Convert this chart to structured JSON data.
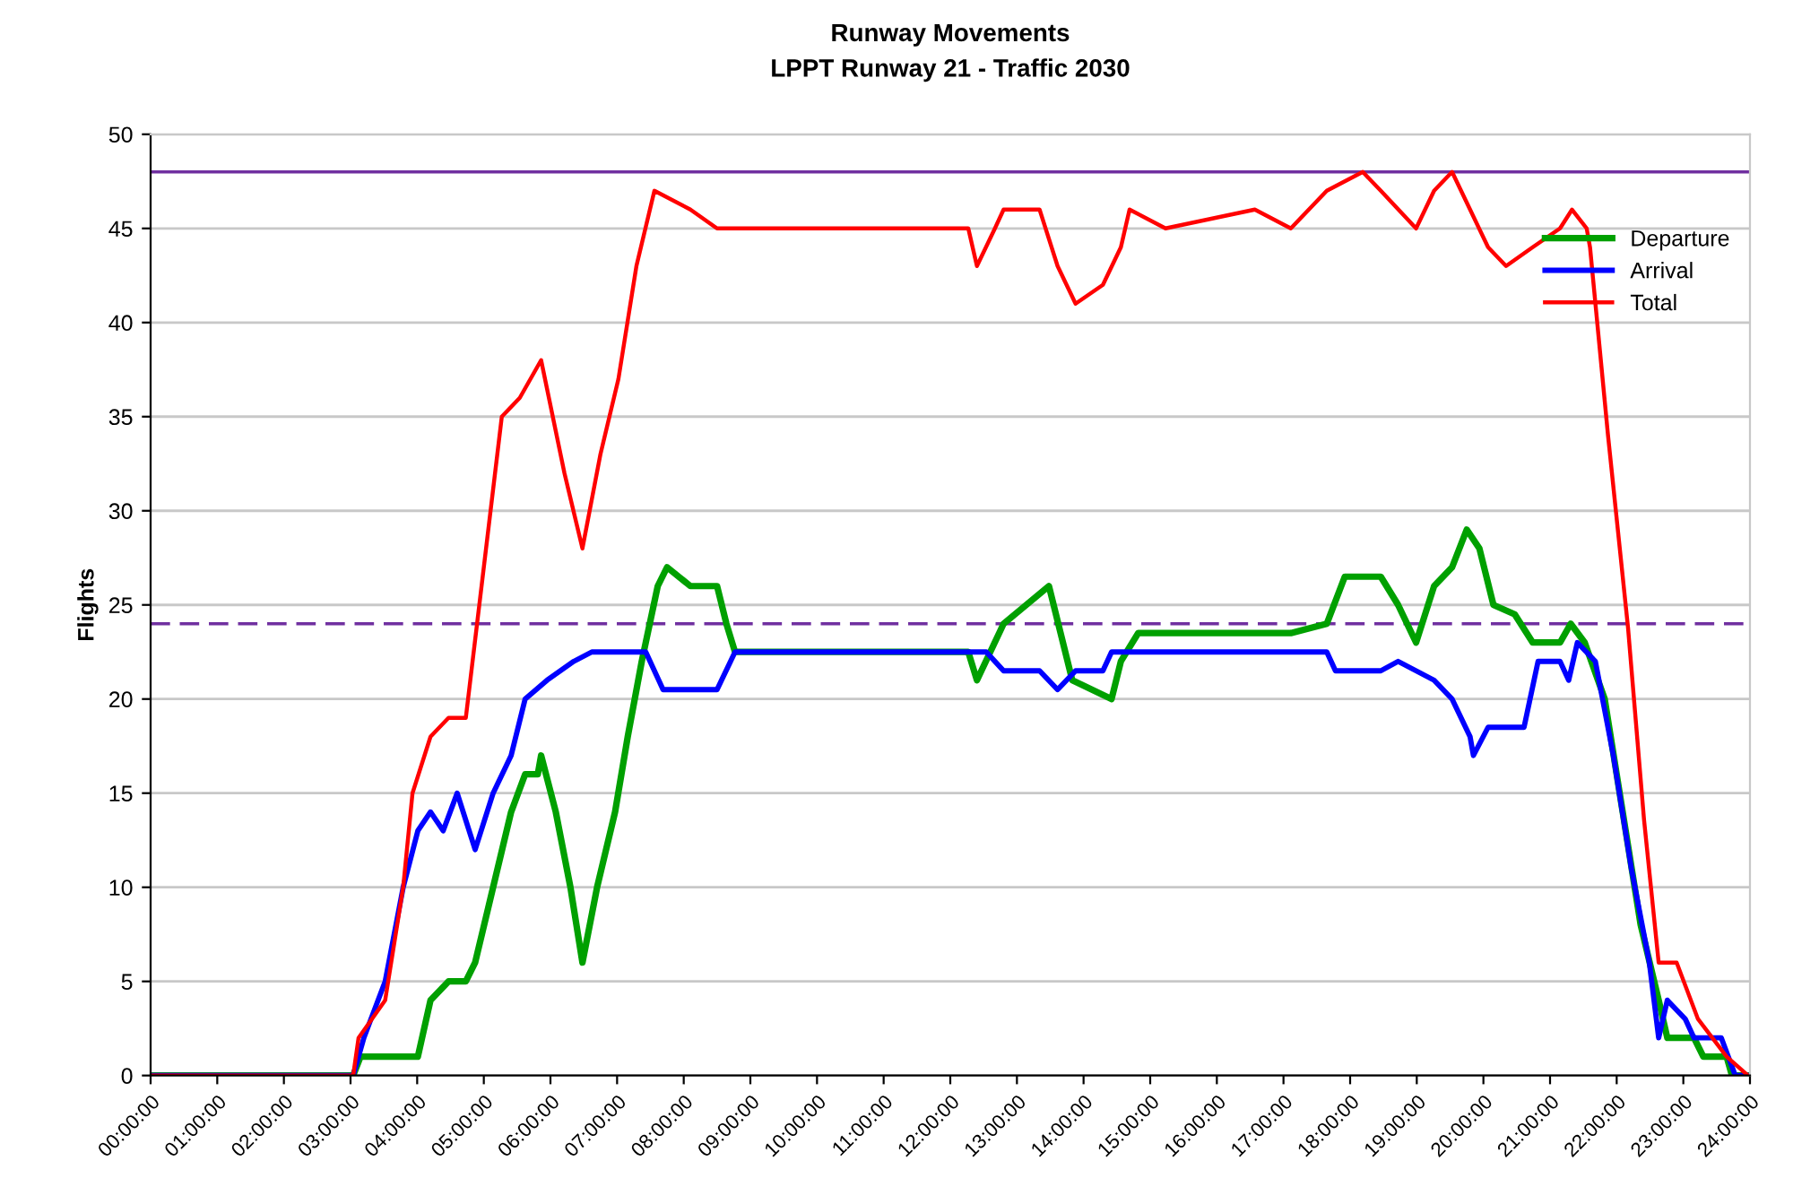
{
  "chart_data": {
    "type": "line",
    "title": "Runway Movements",
    "subtitle": "LPPT Runway 21 - Traffic 2030",
    "ylabel": "Flights",
    "xlim": [
      0,
      24
    ],
    "xticks": [
      {
        "value": 0,
        "label": "00:00:00"
      },
      {
        "value": 1,
        "label": "01:00:00"
      },
      {
        "value": 2,
        "label": "02:00:00"
      },
      {
        "value": 3,
        "label": "03:00:00"
      },
      {
        "value": 4,
        "label": "04:00:00"
      },
      {
        "value": 5,
        "label": "05:00:00"
      },
      {
        "value": 6,
        "label": "06:00:00"
      },
      {
        "value": 7,
        "label": "07:00:00"
      },
      {
        "value": 8,
        "label": "08:00:00"
      },
      {
        "value": 9,
        "label": "09:00:00"
      },
      {
        "value": 10,
        "label": "10:00:00"
      },
      {
        "value": 11,
        "label": "11:00:00"
      },
      {
        "value": 12,
        "label": "12:00:00"
      },
      {
        "value": 13,
        "label": "13:00:00"
      },
      {
        "value": 14,
        "label": "14:00:00"
      },
      {
        "value": 15,
        "label": "15:00:00"
      },
      {
        "value": 16,
        "label": "16:00:00"
      },
      {
        "value": 17,
        "label": "17:00:00"
      },
      {
        "value": 18,
        "label": "18:00:00"
      },
      {
        "value": 19,
        "label": "19:00:00"
      },
      {
        "value": 20,
        "label": "20:00:00"
      },
      {
        "value": 21,
        "label": "21:00:00"
      },
      {
        "value": 22,
        "label": "22:00:00"
      },
      {
        "value": 23,
        "label": "23:00:00"
      },
      {
        "value": 24,
        "label": "24:00:00"
      }
    ],
    "ylim": [
      0,
      50
    ],
    "yticks": [
      0,
      5,
      10,
      15,
      20,
      25,
      30,
      35,
      40,
      45,
      50
    ],
    "grid": "y",
    "legend": "top right",
    "marker": "none",
    "line_style": "solid",
    "ref_lines": [
      {
        "axis": "y",
        "value": 48,
        "color": "#7030a0",
        "line_style": "solid"
      },
      {
        "axis": "y",
        "value": 24,
        "color": "#7030a0",
        "line_style": "dashed"
      }
    ],
    "series": [
      {
        "name": "Departure",
        "color": "#00a000",
        "x": [
          0,
          3.04,
          3.15,
          4.01,
          4.2,
          4.47,
          4.73,
          4.87,
          5.14,
          5.41,
          5.62,
          5.81,
          5.86,
          6.08,
          6.3,
          6.48,
          6.7,
          6.97,
          7.16,
          7.37,
          7.61,
          7.75,
          8.1,
          8.5,
          8.64,
          8.77,
          12.27,
          12.4,
          12.8,
          13.48,
          13.83,
          14.42,
          14.56,
          14.82,
          17.11,
          17.65,
          17.92,
          18.46,
          18.72,
          18.99,
          19.26,
          19.53,
          19.75,
          19.94,
          20.15,
          20.47,
          20.74,
          21.15,
          21.31,
          21.52,
          21.82,
          22.09,
          22.36,
          22.63,
          22.76,
          23.16,
          23.3,
          23.65,
          23.73,
          24
        ],
        "values": [
          0,
          0,
          1,
          1,
          4,
          5,
          5,
          6,
          10,
          14,
          16,
          16,
          17,
          14,
          10,
          6,
          10,
          14,
          18,
          22,
          26,
          27,
          26,
          26,
          24,
          22.5,
          22.5,
          21,
          24,
          26,
          21,
          20,
          22,
          23.5,
          23.5,
          24,
          26.5,
          26.5,
          25,
          23,
          26,
          27,
          29,
          28,
          25,
          24.5,
          23,
          23,
          24,
          23,
          20,
          14,
          8,
          4,
          2,
          2,
          1,
          1,
          0,
          0
        ]
      },
      {
        "name": "Arrival",
        "color": "#0000ff",
        "x": [
          0,
          3.04,
          3.2,
          3.52,
          3.79,
          4.01,
          4.2,
          4.39,
          4.6,
          4.87,
          5.14,
          5.41,
          5.62,
          5.95,
          6.35,
          6.62,
          7.43,
          7.69,
          8.5,
          8.77,
          12.54,
          12.8,
          13.34,
          13.61,
          13.88,
          14.29,
          14.42,
          17.65,
          17.78,
          18.46,
          18.72,
          19.26,
          19.53,
          19.8,
          19.85,
          20.07,
          20.61,
          20.82,
          21.15,
          21.28,
          21.41,
          21.68,
          21.95,
          22.22,
          22.49,
          22.63,
          22.76,
          23.03,
          23.16,
          23.57,
          23.78,
          24
        ],
        "values": [
          0,
          0,
          2,
          5,
          10,
          13,
          14,
          13,
          15,
          12,
          15,
          17,
          20,
          21,
          22,
          22.5,
          22.5,
          20.5,
          20.5,
          22.5,
          22.5,
          21.5,
          21.5,
          20.5,
          21.5,
          21.5,
          22.5,
          22.5,
          21.5,
          21.5,
          22,
          21,
          20,
          18,
          17,
          18.5,
          18.5,
          22,
          22,
          21,
          23,
          22,
          17,
          11,
          6,
          2,
          4,
          3,
          2,
          2,
          0,
          0
        ]
      },
      {
        "name": "Total",
        "color": "#ff0000",
        "x": [
          0,
          3.04,
          3.12,
          3.52,
          3.79,
          3.93,
          4.2,
          4.47,
          4.73,
          5.0,
          5.27,
          5.54,
          5.86,
          6.21,
          6.48,
          6.75,
          7.02,
          7.29,
          7.56,
          8.1,
          8.5,
          9.5,
          10.5,
          11.5,
          12.27,
          12.4,
          12.67,
          12.8,
          13.34,
          13.61,
          13.88,
          14.29,
          14.56,
          14.69,
          15.23,
          16.57,
          17.11,
          17.65,
          18.19,
          18.46,
          18.99,
          19.26,
          19.53,
          19.8,
          20.07,
          20.34,
          20.74,
          21.15,
          21.33,
          21.55,
          21.6,
          21.87,
          22.17,
          22.41,
          22.63,
          22.9,
          23.22,
          23.65,
          23.97,
          24
        ],
        "values": [
          0,
          0,
          2,
          4,
          10,
          15,
          18,
          19,
          19,
          27,
          35,
          36,
          38,
          32,
          28,
          33,
          37,
          43,
          47,
          46,
          45,
          45,
          45,
          45,
          45,
          43,
          45,
          46,
          46,
          43,
          41,
          42,
          44,
          46,
          45,
          46,
          45,
          47,
          48,
          47,
          45,
          47,
          48,
          46,
          44,
          43,
          44,
          45,
          46,
          45,
          44,
          34,
          23.8,
          13.6,
          6,
          6,
          3,
          1,
          0,
          0
        ]
      }
    ]
  }
}
